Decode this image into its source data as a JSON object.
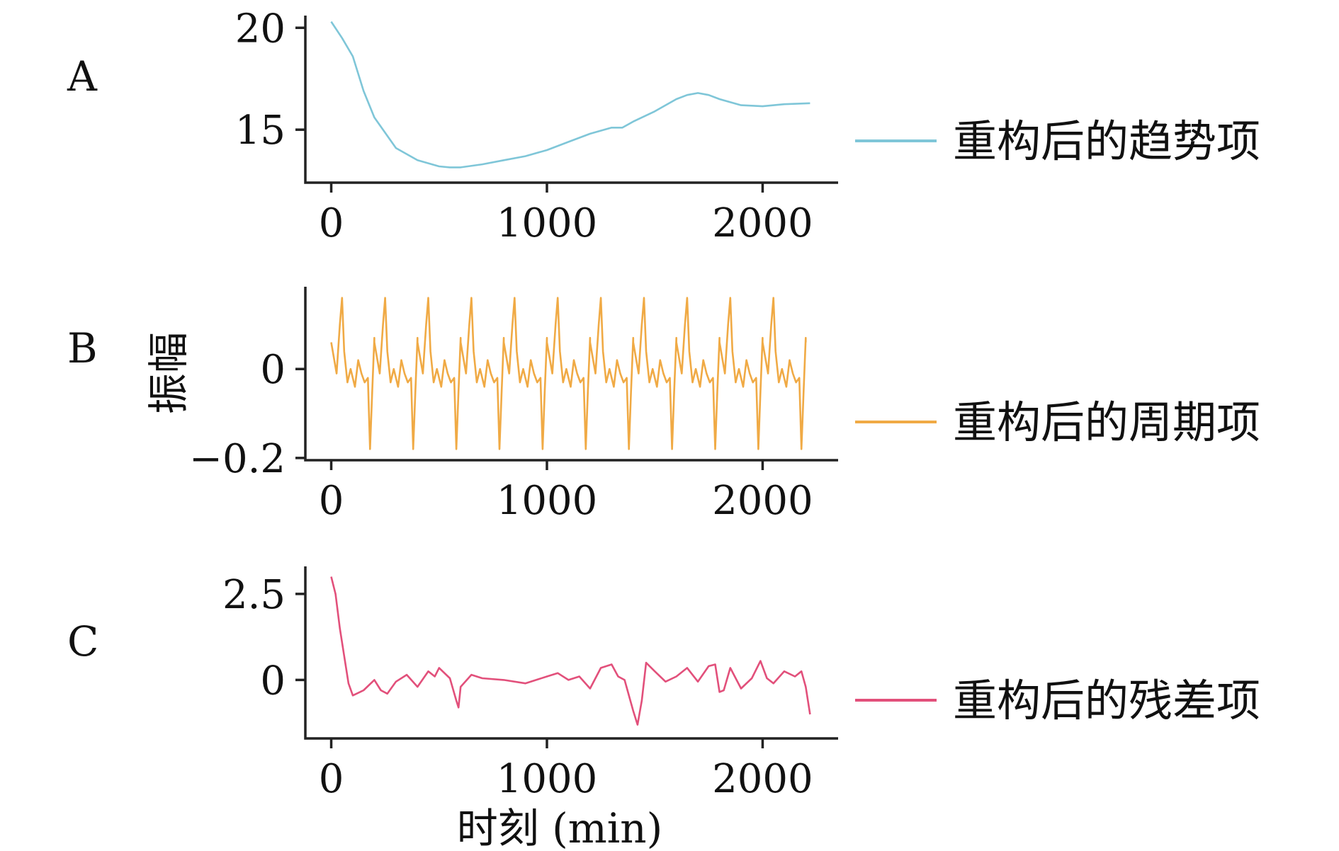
{
  "chart_data": [
    {
      "panel": "A",
      "type": "line",
      "legend": "重构后的趋势项",
      "color": "#7fc6d8",
      "xlim": [
        -120,
        2350
      ],
      "xticks": [
        0,
        1000,
        2000
      ],
      "xtick_labels": [
        "0",
        "1000",
        "2000"
      ],
      "ylim": [
        12.4,
        20.6
      ],
      "yticks": [
        15,
        20
      ],
      "ytick_labels": [
        "15",
        "20"
      ],
      "x": [
        0,
        50,
        100,
        150,
        200,
        300,
        400,
        500,
        550,
        600,
        700,
        800,
        900,
        1000,
        1100,
        1200,
        1300,
        1350,
        1400,
        1500,
        1600,
        1650,
        1700,
        1750,
        1800,
        1900,
        2000,
        2100,
        2220
      ],
      "y": [
        20.3,
        19.5,
        18.6,
        16.9,
        15.6,
        14.1,
        13.5,
        13.2,
        13.15,
        13.15,
        13.3,
        13.5,
        13.7,
        14.0,
        14.4,
        14.8,
        15.1,
        15.1,
        15.4,
        15.9,
        16.5,
        16.7,
        16.8,
        16.7,
        16.5,
        16.2,
        16.15,
        16.25,
        16.3
      ]
    },
    {
      "panel": "B",
      "type": "line",
      "legend": "重构后的周期项",
      "ylabel": "振幅",
      "color": "#f0aa45",
      "xlim": [
        -120,
        2350
      ],
      "xticks": [
        0,
        1000,
        2000
      ],
      "xtick_labels": [
        "0",
        "1000",
        "2000"
      ],
      "ylim": [
        -0.205,
        0.185
      ],
      "yticks": [
        -0.2,
        0
      ],
      "ytick_labels": [
        "−0.2",
        "0"
      ],
      "period": 200,
      "phase": [
        0,
        25,
        40,
        50,
        60,
        75,
        90,
        110,
        125,
        140,
        155,
        170,
        180,
        190,
        200
      ],
      "values": [
        0.06,
        -0.01,
        0.1,
        0.16,
        0.04,
        -0.03,
        0.0,
        -0.04,
        0.02,
        -0.01,
        -0.03,
        -0.02,
        -0.18,
        -0.05,
        0.07
      ],
      "x_end": 2220
    },
    {
      "panel": "C",
      "type": "line",
      "legend": "重构后的残差项",
      "color": "#e2507b",
      "xlim": [
        -120,
        2350
      ],
      "xticks": [
        0,
        1000,
        2000
      ],
      "xtick_labels": [
        "0",
        "1000",
        "2000"
      ],
      "ylim": [
        -1.7,
        3.3
      ],
      "yticks": [
        0,
        2.5
      ],
      "ytick_labels": [
        "0",
        "2.5"
      ],
      "x": [
        0,
        20,
        40,
        60,
        80,
        100,
        150,
        200,
        230,
        260,
        300,
        350,
        400,
        450,
        480,
        500,
        550,
        580,
        590,
        600,
        650,
        700,
        800,
        900,
        1000,
        1050,
        1100,
        1150,
        1200,
        1250,
        1300,
        1330,
        1360,
        1400,
        1420,
        1440,
        1460,
        1500,
        1550,
        1600,
        1650,
        1700,
        1750,
        1780,
        1800,
        1820,
        1850,
        1900,
        1950,
        1990,
        2020,
        2050,
        2100,
        2150,
        2180,
        2200,
        2220
      ],
      "y": [
        3.0,
        2.5,
        1.5,
        0.7,
        -0.1,
        -0.45,
        -0.3,
        0.0,
        -0.3,
        -0.4,
        -0.05,
        0.15,
        -0.2,
        0.25,
        0.1,
        0.35,
        0.05,
        -0.6,
        -0.8,
        -0.2,
        0.15,
        0.05,
        0.0,
        -0.1,
        0.1,
        0.2,
        0.0,
        0.1,
        -0.25,
        0.35,
        0.45,
        0.1,
        0.0,
        -0.9,
        -1.3,
        -0.6,
        0.5,
        0.25,
        -0.05,
        0.1,
        0.35,
        -0.05,
        0.4,
        0.45,
        -0.35,
        -0.3,
        0.35,
        -0.25,
        0.05,
        0.55,
        0.05,
        -0.1,
        0.25,
        0.1,
        0.25,
        -0.2,
        -1.0
      ]
    }
  ],
  "xlabel": "时刻 (min)"
}
